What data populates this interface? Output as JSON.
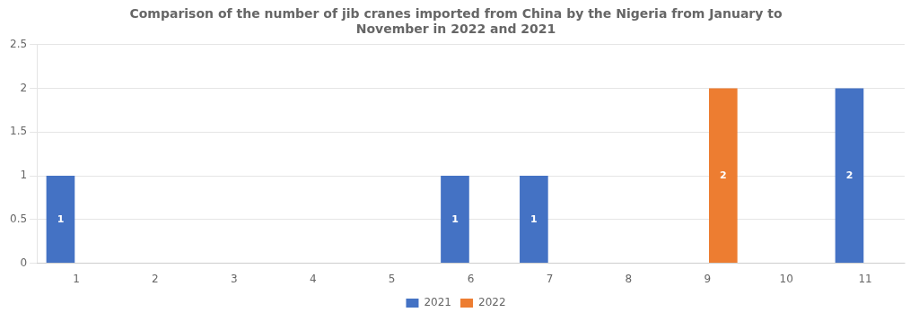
{
  "chart_data": {
    "type": "bar",
    "title": "Comparison of the number of jib cranes imported from China by the Nigeria from January to\nNovember in 2022 and 2021",
    "categories": [
      "1",
      "2",
      "3",
      "4",
      "5",
      "6",
      "7",
      "8",
      "9",
      "10",
      "11"
    ],
    "series": [
      {
        "name": "2021",
        "color": "#4472C4",
        "values": [
          1,
          0,
          0,
          0,
          0,
          1,
          1,
          0,
          0,
          0,
          2
        ]
      },
      {
        "name": "2022",
        "color": "#ED7D31",
        "values": [
          0,
          0,
          0,
          0,
          0,
          0,
          0,
          0,
          2,
          0,
          0
        ]
      }
    ],
    "ylim": [
      0,
      2.5
    ],
    "yticks": [
      0,
      0.5,
      1,
      1.5,
      2,
      2.5
    ],
    "grid": true,
    "legend": "bottom",
    "data_labels": true
  }
}
